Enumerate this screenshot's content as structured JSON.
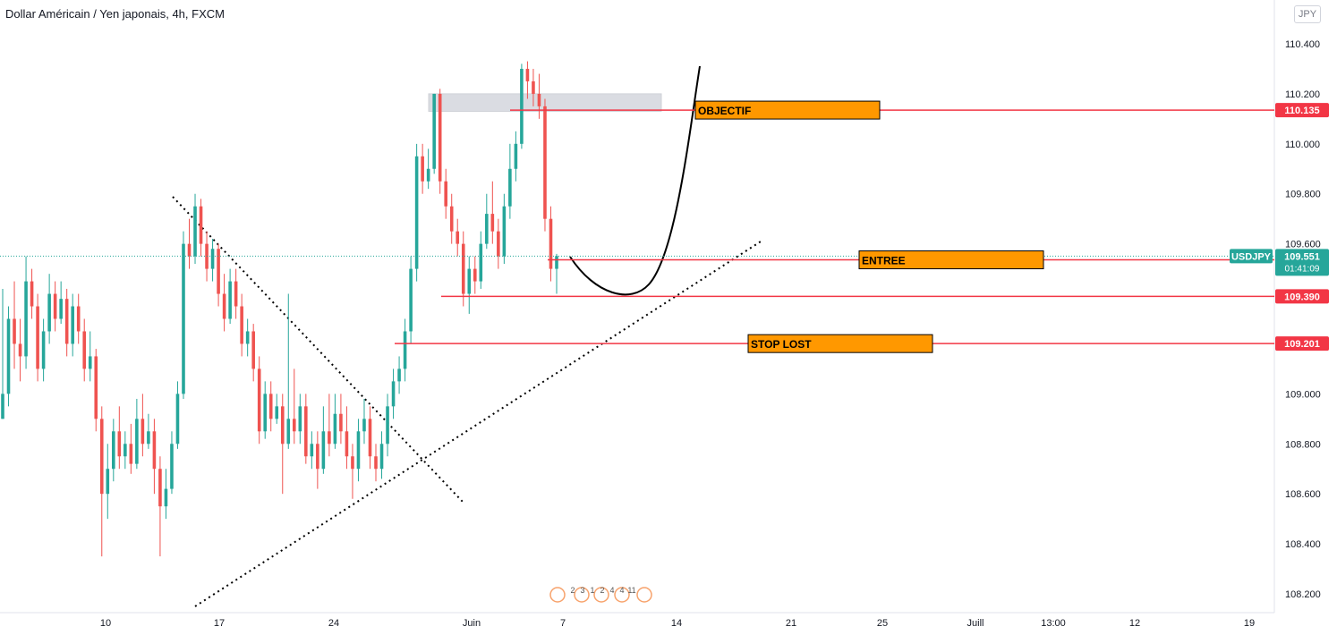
{
  "header": {
    "title": "Dollar Américain / Yen japonais, 4h, FXCM",
    "currency_button": "JPY"
  },
  "colors": {
    "up": "#26a69a",
    "down": "#ef5350",
    "level_line": "#f23645",
    "label_box": "#ff9800",
    "triangle": "#000000",
    "current": "#26a69a"
  },
  "chart_data": {
    "type": "candlestick",
    "symbol": "USDJPY",
    "y_ticks": [
      110.4,
      110.2,
      110.0,
      109.8,
      109.6,
      109.4,
      109.2,
      109.0,
      108.8,
      108.6,
      108.4,
      108.2
    ],
    "ylim": [
      108.15,
      110.55
    ],
    "x_ticks": [
      "10",
      "17",
      "24",
      "Juin",
      "7",
      "14",
      "21",
      "25",
      "Juill",
      "13:00",
      "12",
      "19"
    ],
    "series": [
      {
        "values": [
          [
            108.9,
            109.0,
            109.42,
            108.9
          ],
          [
            109.0,
            109.3,
            109.35,
            108.95
          ],
          [
            109.3,
            109.2,
            109.45,
            109.1
          ],
          [
            109.2,
            109.15,
            109.3,
            109.05
          ],
          [
            109.15,
            109.45,
            109.55,
            109.1
          ],
          [
            109.45,
            109.35,
            109.5,
            109.3
          ],
          [
            109.35,
            109.1,
            109.4,
            109.05
          ],
          [
            109.1,
            109.25,
            109.3,
            109.05
          ],
          [
            109.25,
            109.4,
            109.48,
            109.2
          ],
          [
            109.4,
            109.3,
            109.45,
            109.25
          ],
          [
            109.3,
            109.38,
            109.45,
            109.28
          ],
          [
            109.38,
            109.2,
            109.42,
            109.15
          ],
          [
            109.2,
            109.35,
            109.4,
            109.15
          ],
          [
            109.35,
            109.25,
            109.4,
            109.2
          ],
          [
            109.25,
            109.1,
            109.3,
            109.05
          ],
          [
            109.1,
            109.15,
            109.25,
            109.05
          ],
          [
            109.15,
            108.9,
            109.18,
            108.85
          ],
          [
            108.9,
            108.6,
            108.95,
            108.35
          ],
          [
            108.6,
            108.7,
            108.8,
            108.5
          ],
          [
            108.7,
            108.85,
            108.9,
            108.65
          ],
          [
            108.85,
            108.75,
            108.95,
            108.7
          ],
          [
            108.75,
            108.8,
            108.85,
            108.7
          ],
          [
            108.8,
            108.72,
            108.88,
            108.68
          ],
          [
            108.72,
            108.9,
            108.98,
            108.7
          ],
          [
            108.9,
            108.8,
            109.0,
            108.75
          ],
          [
            108.8,
            108.85,
            108.92,
            108.78
          ],
          [
            108.85,
            108.7,
            108.9,
            108.6
          ],
          [
            108.7,
            108.55,
            108.75,
            108.35
          ],
          [
            108.55,
            108.62,
            108.7,
            108.5
          ],
          [
            108.62,
            108.8,
            108.85,
            108.6
          ],
          [
            108.8,
            109.0,
            109.05,
            108.78
          ],
          [
            109.0,
            109.6,
            109.65,
            108.98
          ],
          [
            109.6,
            109.55,
            109.7,
            109.5
          ],
          [
            109.55,
            109.75,
            109.8,
            109.52
          ],
          [
            109.75,
            109.6,
            109.78,
            109.55
          ],
          [
            109.6,
            109.5,
            109.65,
            109.45
          ],
          [
            109.5,
            109.58,
            109.62,
            109.45
          ],
          [
            109.58,
            109.4,
            109.6,
            109.35
          ],
          [
            109.4,
            109.3,
            109.48,
            109.25
          ],
          [
            109.3,
            109.45,
            109.5,
            109.28
          ],
          [
            109.45,
            109.35,
            109.5,
            109.3
          ],
          [
            109.35,
            109.2,
            109.4,
            109.15
          ],
          [
            109.2,
            109.25,
            109.3,
            109.15
          ],
          [
            109.25,
            109.1,
            109.28,
            109.05
          ],
          [
            109.1,
            108.85,
            109.15,
            108.8
          ],
          [
            108.85,
            109.0,
            109.05,
            108.82
          ],
          [
            109.0,
            108.9,
            109.05,
            108.85
          ],
          [
            108.9,
            108.95,
            109.0,
            108.88
          ],
          [
            108.95,
            108.8,
            109.0,
            108.6
          ],
          [
            108.8,
            108.9,
            109.4,
            108.78
          ],
          [
            108.9,
            108.85,
            109.1,
            108.8
          ],
          [
            108.85,
            108.95,
            109.0,
            108.8
          ],
          [
            108.95,
            108.75,
            109.0,
            108.72
          ],
          [
            108.75,
            108.8,
            108.85,
            108.7
          ],
          [
            108.8,
            108.7,
            108.85,
            108.62
          ],
          [
            108.7,
            108.85,
            108.95,
            108.68
          ],
          [
            108.85,
            108.8,
            109.0,
            108.75
          ],
          [
            108.8,
            108.92,
            109.0,
            108.78
          ],
          [
            108.92,
            108.85,
            109.0,
            108.8
          ],
          [
            108.85,
            108.75,
            108.95,
            108.7
          ],
          [
            108.75,
            108.7,
            108.8,
            108.58
          ],
          [
            108.7,
            108.85,
            108.9,
            108.65
          ],
          [
            108.85,
            108.9,
            108.98,
            108.8
          ],
          [
            108.9,
            108.75,
            108.95,
            108.7
          ],
          [
            108.75,
            108.7,
            108.8,
            108.65
          ],
          [
            108.7,
            108.8,
            108.85,
            108.66
          ],
          [
            108.8,
            108.95,
            109.0,
            108.75
          ],
          [
            108.95,
            109.05,
            109.1,
            108.9
          ],
          [
            109.05,
            109.1,
            109.15,
            109.0
          ],
          [
            109.1,
            109.25,
            109.3,
            109.05
          ],
          [
            109.25,
            109.5,
            109.55,
            109.2
          ],
          [
            109.5,
            109.95,
            110.0,
            109.45
          ],
          [
            109.95,
            109.85,
            110.0,
            109.8
          ],
          [
            109.85,
            109.9,
            109.98,
            109.82
          ],
          [
            109.9,
            110.2,
            110.2,
            109.88
          ],
          [
            110.2,
            109.85,
            110.22,
            109.8
          ],
          [
            109.85,
            109.75,
            109.9,
            109.7
          ],
          [
            109.75,
            109.65,
            109.8,
            109.6
          ],
          [
            109.65,
            109.6,
            109.7,
            109.55
          ],
          [
            109.6,
            109.4,
            109.65,
            109.35
          ],
          [
            109.4,
            109.5,
            109.55,
            109.32
          ],
          [
            109.5,
            109.45,
            109.55,
            109.4
          ],
          [
            109.45,
            109.6,
            109.65,
            109.42
          ],
          [
            109.6,
            109.72,
            109.8,
            109.58
          ],
          [
            109.72,
            109.65,
            109.85,
            109.6
          ],
          [
            109.65,
            109.55,
            109.7,
            109.5
          ],
          [
            109.55,
            109.75,
            109.8,
            109.52
          ],
          [
            109.75,
            109.9,
            110.0,
            109.7
          ],
          [
            109.9,
            110.0,
            110.05,
            109.85
          ],
          [
            110.0,
            110.3,
            110.32,
            109.98
          ],
          [
            110.3,
            110.25,
            110.33,
            110.18
          ],
          [
            110.25,
            110.2,
            110.3,
            110.15
          ],
          [
            110.2,
            110.15,
            110.28,
            110.1
          ],
          [
            110.15,
            109.7,
            110.18,
            109.65
          ],
          [
            109.7,
            109.5,
            109.75,
            109.45
          ],
          [
            109.5,
            109.551,
            109.56,
            109.4
          ]
        ]
      }
    ],
    "levels": [
      {
        "price": 110.135,
        "label": "110.135",
        "box": "OBJECTIF"
      },
      {
        "price": 109.536,
        "label": "109.536",
        "box": "ENTREE"
      },
      {
        "price": 109.39,
        "label": "109.390",
        "box": ""
      },
      {
        "price": 109.201,
        "label": "109.201",
        "box": "STOP LOST"
      }
    ],
    "current": {
      "symbol": "USDJPY",
      "price": "109.551",
      "countdown": "01:41:09"
    },
    "zone": {
      "top": 110.2,
      "bottom": 110.13
    },
    "events": [
      "2",
      "3",
      "1",
      "2",
      "4",
      "4",
      "11"
    ]
  }
}
